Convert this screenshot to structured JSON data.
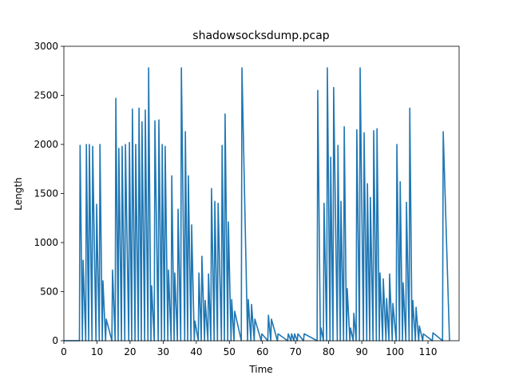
{
  "chart_data": {
    "type": "line",
    "title": "shadowsocksdump.pcap",
    "x_label": "Time",
    "y_label": "Length",
    "x": [
      0,
      4.7,
      4.9,
      5.6,
      5.8,
      6.6,
      6.8,
      7.5,
      7.7,
      8.5,
      8.7,
      9.7,
      9.9,
      10.7,
      10.9,
      11.6,
      11.8,
      12.6,
      12.8,
      14.5,
      14.7,
      15.5,
      15.7,
      16.4,
      16.6,
      17.4,
      17.6,
      18.4,
      18.6,
      19.6,
      19.8,
      20.5,
      20.7,
      21.5,
      21.7,
      22.5,
      22.7,
      23.4,
      23.6,
      24.4,
      24.6,
      25.4,
      25.6,
      26.3,
      26.5,
      27.3,
      27.5,
      28.5,
      28.7,
      29.5,
      29.7,
      30.4,
      30.6,
      31.4,
      31.6,
      32.4,
      32.6,
      33.3,
      33.5,
      34.3,
      34.5,
      35.3,
      35.5,
      36.5,
      36.7,
      37.4,
      37.6,
      38.4,
      38.6,
      39.4,
      39.6,
      40.6,
      40.8,
      41.5,
      41.7,
      42.5,
      42.7,
      43.5,
      43.7,
      44.4,
      44.6,
      45.4,
      45.6,
      46.4,
      46.6,
      47.6,
      47.8,
      48.5,
      48.7,
      49.5,
      49.7,
      50.5,
      50.7,
      51.4,
      51.6,
      53.6,
      53.8,
      55.5,
      55.7,
      56.5,
      56.7,
      57.5,
      57.7,
      59.6,
      59.8,
      61.6,
      61.8,
      62.5,
      62.7,
      64.5,
      64.7,
      67.6,
      67.8,
      68.6,
      68.8,
      69.5,
      69.7,
      70.5,
      70.7,
      72.4,
      72.6,
      76.5,
      76.7,
      77.5,
      77.7,
      78.4,
      78.6,
      79.4,
      79.6,
      80.4,
      80.6,
      81.3,
      81.5,
      82.6,
      82.8,
      83.5,
      83.7,
      84.5,
      84.7,
      85.4,
      85.6,
      86.4,
      86.6,
      87.4,
      87.6,
      88.3,
      88.5,
      89.3,
      89.5,
      90.5,
      90.7,
      91.5,
      91.7,
      92.4,
      92.6,
      93.4,
      93.6,
      94.4,
      94.6,
      95.3,
      95.5,
      96.3,
      96.5,
      97.3,
      97.5,
      98.2,
      98.4,
      99.2,
      99.4,
      100.4,
      100.6,
      101.4,
      101.6,
      102.3,
      102.5,
      103.3,
      103.5,
      104.3,
      104.5,
      105.2,
      105.4,
      106.2,
      106.4,
      107.2,
      107.4,
      108.4,
      108.6,
      111.3,
      111.5,
      114.4,
      114.6,
      116.5
    ],
    "values": [
      0,
      0,
      1990,
      0,
      820,
      0,
      2000,
      0,
      2000,
      0,
      1980,
      0,
      1390,
      0,
      2000,
      0,
      610,
      0,
      220,
      0,
      720,
      0,
      2470,
      0,
      1960,
      0,
      1980,
      0,
      2000,
      0,
      2020,
      0,
      2360,
      0,
      2000,
      0,
      2370,
      0,
      2230,
      0,
      2350,
      0,
      2780,
      0,
      560,
      0,
      2240,
      0,
      2250,
      0,
      2000,
      0,
      1980,
      0,
      720,
      0,
      1680,
      0,
      690,
      0,
      1340,
      0,
      2780,
      0,
      2130,
      0,
      1680,
      0,
      1180,
      0,
      200,
      0,
      690,
      0,
      860,
      0,
      410,
      0,
      680,
      0,
      1550,
      0,
      1420,
      0,
      1400,
      0,
      1990,
      0,
      2310,
      0,
      1210,
      0,
      420,
      0,
      300,
      0,
      2780,
      0,
      420,
      0,
      370,
      0,
      220,
      0,
      70,
      0,
      260,
      0,
      220,
      0,
      70,
      0,
      70,
      0,
      70,
      0,
      70,
      0,
      70,
      0,
      70,
      0,
      2550,
      0,
      130,
      0,
      1400,
      0,
      2780,
      0,
      1870,
      0,
      2580,
      0,
      1990,
      0,
      1420,
      0,
      2180,
      0,
      530,
      0,
      130,
      0,
      280,
      0,
      2150,
      0,
      2780,
      0,
      2120,
      0,
      1600,
      0,
      1460,
      0,
      2140,
      0,
      2160,
      0,
      690,
      0,
      630,
      0,
      430,
      0,
      680,
      0,
      380,
      0,
      2000,
      0,
      1620,
      0,
      590,
      0,
      1410,
      0,
      2370,
      0,
      410,
      0,
      340,
      0,
      150,
      0,
      70,
      0,
      80,
      0,
      2130,
      0
    ],
    "color": "#1f77b4",
    "xlim": [
      0,
      119.4
    ],
    "ylim": [
      0,
      3000
    ],
    "xticks": [
      0,
      10,
      20,
      30,
      40,
      50,
      60,
      70,
      80,
      90,
      100,
      110
    ],
    "yticks": [
      0,
      500,
      1000,
      1500,
      2000,
      2500,
      3000
    ]
  }
}
